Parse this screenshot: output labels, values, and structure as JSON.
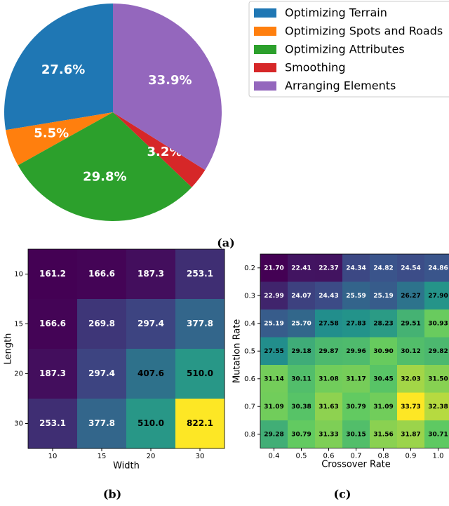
{
  "chart_data": [
    {
      "type": "pie",
      "caption": "(a)",
      "categories": [
        "Optimizing Terrain",
        "Optimizing Spots and Roads",
        "Optimizing Attributes",
        "Smoothing",
        "Arranging Elements"
      ],
      "values": [
        27.6,
        5.5,
        29.8,
        3.2,
        33.9
      ],
      "value_labels": [
        "27.6%",
        "5.5%",
        "29.8%",
        "3.2%",
        "33.9%"
      ],
      "colors": [
        "#1f77b4",
        "#ff7f0e",
        "#2ca02c",
        "#d62728",
        "#9467bd"
      ],
      "legend": "upper right"
    },
    {
      "type": "heatmap",
      "caption": "(b)",
      "xlabel": "Width",
      "ylabel": "Length",
      "x_categories": [
        "10",
        "15",
        "20",
        "30"
      ],
      "y_categories": [
        "10",
        "15",
        "20",
        "30"
      ],
      "values": [
        [
          161.2,
          166.6,
          187.3,
          253.1
        ],
        [
          166.6,
          269.8,
          297.4,
          377.8
        ],
        [
          187.3,
          297.4,
          407.6,
          510.0
        ],
        [
          253.1,
          377.8,
          510.0,
          822.1
        ]
      ],
      "value_labels": [
        [
          "161.2",
          "166.6",
          "187.3",
          "253.1"
        ],
        [
          "166.6",
          "269.8",
          "297.4",
          "377.8"
        ],
        [
          "187.3",
          "297.4",
          "407.6",
          "510.0"
        ],
        [
          "253.1",
          "377.8",
          "510.0",
          "822.1"
        ]
      ],
      "colormap": "viridis"
    },
    {
      "type": "heatmap",
      "caption": "(c)",
      "xlabel": "Crossover Rate",
      "ylabel": "Mutation Rate",
      "x_categories": [
        "0.4",
        "0.5",
        "0.6",
        "0.7",
        "0.8",
        "0.9",
        "1.0"
      ],
      "y_categories": [
        "0.2",
        "0.3",
        "0.4",
        "0.5",
        "0.6",
        "0.7",
        "0.8"
      ],
      "values": [
        [
          21.7,
          22.41,
          22.37,
          24.34,
          24.82,
          24.54,
          24.86
        ],
        [
          22.99,
          24.07,
          24.43,
          25.59,
          25.19,
          26.27,
          27.9
        ],
        [
          25.19,
          25.7,
          27.58,
          27.83,
          28.23,
          29.51,
          30.93
        ],
        [
          27.55,
          29.18,
          29.87,
          29.96,
          30.9,
          30.12,
          29.82
        ],
        [
          31.14,
          30.11,
          31.08,
          31.17,
          30.45,
          32.03,
          31.5
        ],
        [
          31.09,
          30.38,
          31.63,
          30.79,
          31.09,
          33.73,
          32.38
        ],
        [
          29.28,
          30.79,
          31.33,
          30.15,
          31.56,
          31.87,
          30.71
        ]
      ],
      "value_labels": [
        [
          "21.70",
          "22.41",
          "22.37",
          "24.34",
          "24.82",
          "24.54",
          "24.86"
        ],
        [
          "22.99",
          "24.07",
          "24.43",
          "25.59",
          "25.19",
          "26.27",
          "27.90"
        ],
        [
          "25.19",
          "25.70",
          "27.58",
          "27.83",
          "28.23",
          "29.51",
          "30.93"
        ],
        [
          "27.55",
          "29.18",
          "29.87",
          "29.96",
          "30.90",
          "30.12",
          "29.82"
        ],
        [
          "31.14",
          "30.11",
          "31.08",
          "31.17",
          "30.45",
          "32.03",
          "31.50"
        ],
        [
          "31.09",
          "30.38",
          "31.63",
          "30.79",
          "31.09",
          "33.73",
          "32.38"
        ],
        [
          "29.28",
          "30.79",
          "31.33",
          "30.15",
          "31.56",
          "31.87",
          "30.71"
        ]
      ],
      "colormap": "viridis"
    }
  ]
}
